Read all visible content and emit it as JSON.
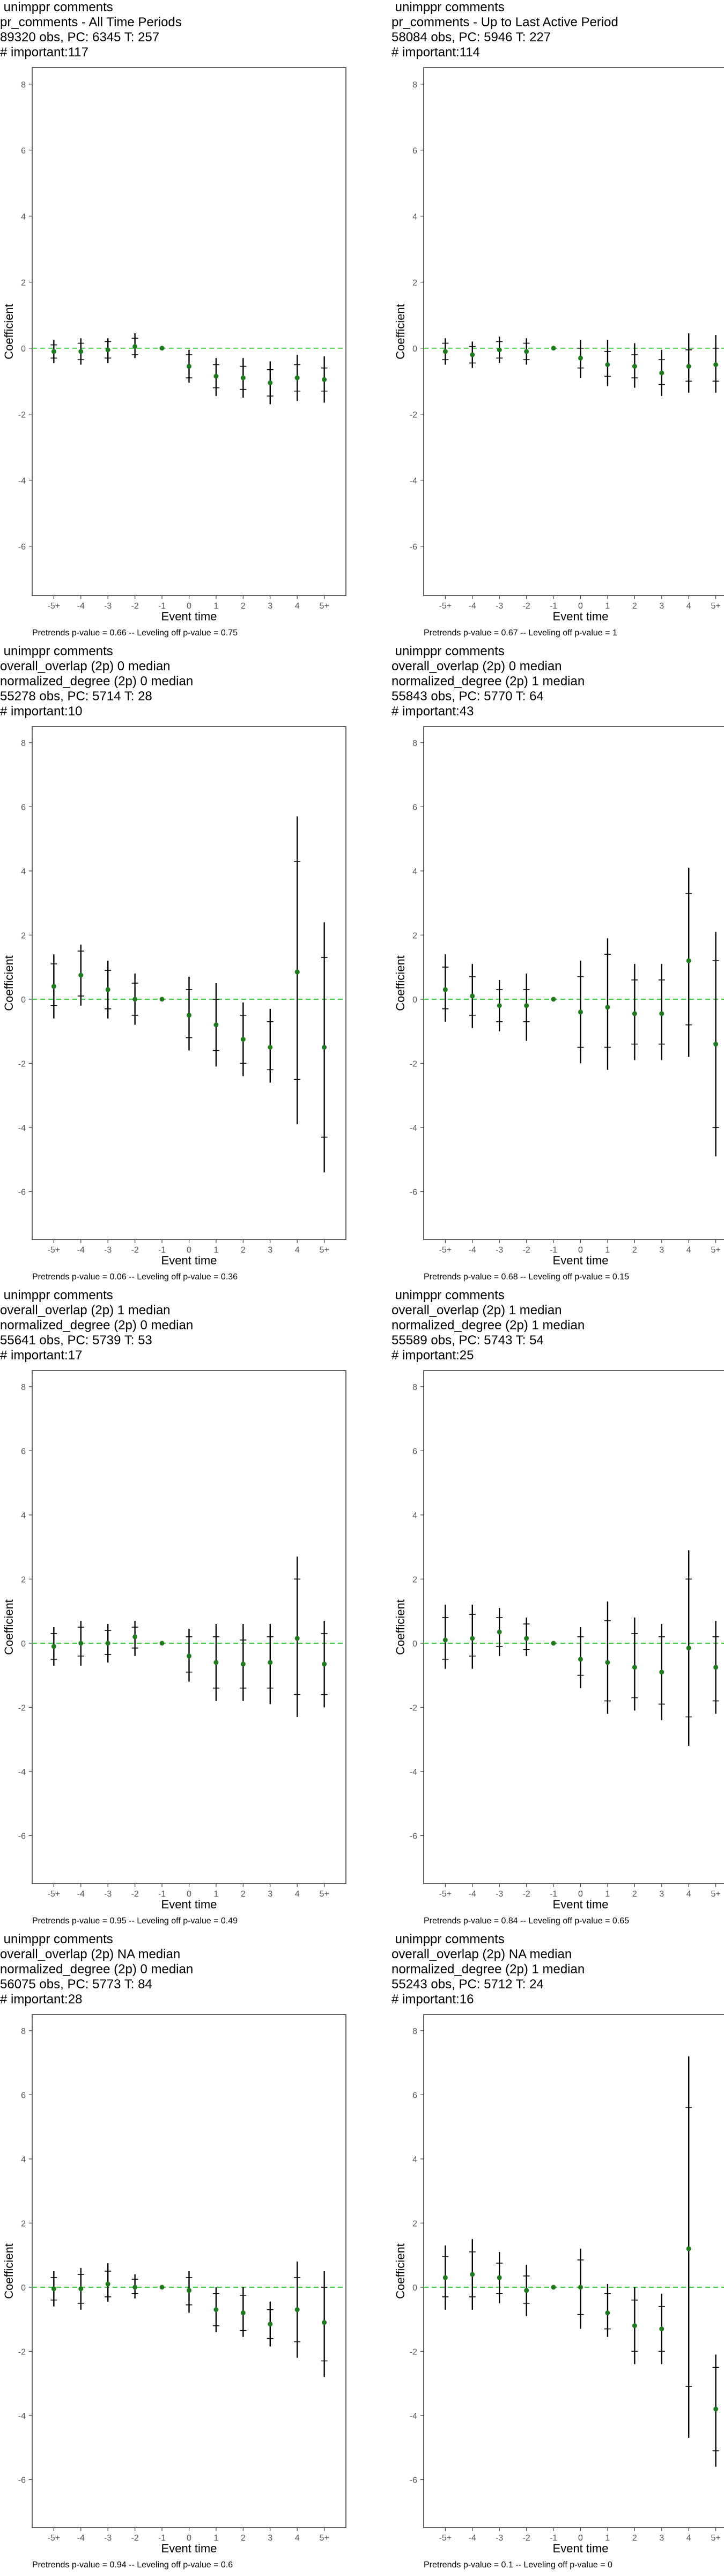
{
  "colors": {
    "point": "#1f7a1f",
    "errorbar": "#000000",
    "zero_line": "#33cc33",
    "frame": "#333333"
  },
  "chart_data": [
    {
      "type": "scatter",
      "title_lines": [
        "unimppr comments",
        "pr_comments - All Time Periods",
        "89320 obs, PC: 6345 T: 257",
        "# important:117"
      ],
      "xlabel": "Event time",
      "ylabel": "Coefficient",
      "categories": [
        "-5+",
        "-4",
        "-3",
        "-2",
        "-1",
        "0",
        "1",
        "2",
        "3",
        "4",
        "5+"
      ],
      "values": [
        -0.1,
        -0.1,
        -0.05,
        0.05,
        0,
        -0.55,
        -0.85,
        -0.9,
        -1.05,
        -0.9,
        -0.95
      ],
      "ci_inner": [
        [
          -0.3,
          0.1
        ],
        [
          -0.35,
          0.15
        ],
        [
          -0.3,
          0.2
        ],
        [
          -0.2,
          0.3
        ],
        [
          0,
          0
        ],
        [
          -0.9,
          -0.2
        ],
        [
          -1.2,
          -0.5
        ],
        [
          -1.25,
          -0.55
        ],
        [
          -1.45,
          -0.65
        ],
        [
          -1.3,
          -0.5
        ],
        [
          -1.3,
          -0.6
        ]
      ],
      "ci_outer": [
        [
          -0.45,
          0.25
        ],
        [
          -0.5,
          0.3
        ],
        [
          -0.45,
          0.3
        ],
        [
          -0.3,
          0.45
        ],
        [
          0,
          0
        ],
        [
          -1.05,
          -0.05
        ],
        [
          -1.45,
          -0.3
        ],
        [
          -1.5,
          -0.3
        ],
        [
          -1.7,
          -0.4
        ],
        [
          -1.6,
          -0.2
        ],
        [
          -1.65,
          -0.25
        ]
      ],
      "ylim": [
        -7.5,
        8.5
      ],
      "yticks": [
        -6,
        -4,
        -2,
        0,
        2,
        4,
        6,
        8
      ],
      "footnote": "Pretrends p-value = 0.66 -- Leveling off p-value = 0.75"
    },
    {
      "type": "scatter",
      "title_lines": [
        "unimppr comments",
        "pr_comments - Up to Last Active Period",
        "58084 obs, PC: 5946 T: 227",
        "# important:114"
      ],
      "xlabel": "Event time",
      "ylabel": "Coefficient",
      "categories": [
        "-5+",
        "-4",
        "-3",
        "-2",
        "-1",
        "0",
        "1",
        "2",
        "3",
        "4",
        "5+"
      ],
      "values": [
        -0.1,
        -0.2,
        -0.05,
        -0.1,
        0,
        -0.3,
        -0.5,
        -0.55,
        -0.75,
        -0.55,
        -0.5
      ],
      "ci_inner": [
        [
          -0.35,
          0.15
        ],
        [
          -0.45,
          0.05
        ],
        [
          -0.3,
          0.2
        ],
        [
          -0.35,
          0.15
        ],
        [
          0,
          0
        ],
        [
          -0.6,
          0
        ],
        [
          -0.85,
          -0.1
        ],
        [
          -0.9,
          -0.2
        ],
        [
          -1.1,
          -0.35
        ],
        [
          -1,
          -0.05
        ],
        [
          -1,
          0
        ]
      ],
      "ci_outer": [
        [
          -0.5,
          0.3
        ],
        [
          -0.6,
          0.2
        ],
        [
          -0.45,
          0.35
        ],
        [
          -0.5,
          0.3
        ],
        [
          0,
          0
        ],
        [
          -0.9,
          0.25
        ],
        [
          -1.15,
          0.25
        ],
        [
          -1.2,
          0.15
        ],
        [
          -1.45,
          -0.05
        ],
        [
          -1.35,
          0.45
        ],
        [
          -1.35,
          0.4
        ]
      ],
      "ylim": [
        -7.5,
        8.5
      ],
      "yticks": [
        -6,
        -4,
        -2,
        0,
        2,
        4,
        6,
        8
      ],
      "footnote": "Pretrends p-value = 0.67 -- Leveling off p-value = 1"
    },
    {
      "type": "scatter",
      "title_lines": [
        "unimppr comments",
        "overall_overlap (2p) 0 median",
        "normalized_degree (2p) 0 median",
        "55278 obs, PC: 5714 T: 28",
        "# important:10"
      ],
      "xlabel": "Event time",
      "ylabel": "Coefficient",
      "categories": [
        "-5+",
        "-4",
        "-3",
        "-2",
        "-1",
        "0",
        "1",
        "2",
        "3",
        "4",
        "5+"
      ],
      "values": [
        0.4,
        0.75,
        0.3,
        0,
        0,
        -0.5,
        -0.8,
        -1.25,
        -1.5,
        0.85,
        -1.5
      ],
      "ci_inner": [
        [
          -0.2,
          1.1
        ],
        [
          0.1,
          1.5
        ],
        [
          -0.3,
          0.9
        ],
        [
          -0.5,
          0.5
        ],
        [
          0,
          0
        ],
        [
          -1.2,
          0.3
        ],
        [
          -1.6,
          0
        ],
        [
          -2,
          -0.5
        ],
        [
          -2.2,
          -0.7
        ],
        [
          -2.5,
          4.3
        ],
        [
          -4.3,
          1.3
        ]
      ],
      "ci_outer": [
        [
          -0.6,
          1.4
        ],
        [
          -0.2,
          1.7
        ],
        [
          -0.6,
          1.2
        ],
        [
          -0.8,
          0.8
        ],
        [
          0,
          0
        ],
        [
          -1.6,
          0.7
        ],
        [
          -2.1,
          0.5
        ],
        [
          -2.4,
          -0.1
        ],
        [
          -2.6,
          -0.3
        ],
        [
          -3.9,
          5.7
        ],
        [
          -5.4,
          2.4
        ]
      ],
      "ylim": [
        -7.5,
        8.5
      ],
      "yticks": [
        -6,
        -4,
        -2,
        0,
        2,
        4,
        6,
        8
      ],
      "footnote": "Pretrends p-value = 0.06 -- Leveling off p-value = 0.36"
    },
    {
      "type": "scatter",
      "title_lines": [
        "unimppr comments",
        "overall_overlap (2p) 0 median",
        "normalized_degree (2p) 1 median",
        "55843 obs, PC: 5770 T: 64",
        "# important:43"
      ],
      "xlabel": "Event time",
      "ylabel": "Coefficient",
      "categories": [
        "-5+",
        "-4",
        "-3",
        "-2",
        "-1",
        "0",
        "1",
        "2",
        "3",
        "4",
        "5+"
      ],
      "values": [
        0.3,
        0.1,
        -0.2,
        -0.2,
        0,
        -0.4,
        -0.25,
        -0.45,
        -0.45,
        1.2,
        -1.4
      ],
      "ci_inner": [
        [
          -0.3,
          1
        ],
        [
          -0.5,
          0.7
        ],
        [
          -0.7,
          0.3
        ],
        [
          -0.7,
          0.3
        ],
        [
          0,
          0
        ],
        [
          -1.5,
          0.7
        ],
        [
          -1.5,
          1.4
        ],
        [
          -1.4,
          0.6
        ],
        [
          -1.4,
          0.6
        ],
        [
          -0.8,
          3.3
        ],
        [
          -4,
          1.2
        ]
      ],
      "ci_outer": [
        [
          -0.7,
          1.4
        ],
        [
          -0.9,
          1.1
        ],
        [
          -1,
          0.6
        ],
        [
          -1.3,
          0.8
        ],
        [
          0,
          0
        ],
        [
          -2,
          1.2
        ],
        [
          -2.2,
          1.9
        ],
        [
          -1.9,
          1.1
        ],
        [
          -1.9,
          1.1
        ],
        [
          -1.8,
          4.1
        ],
        [
          -4.9,
          2.1
        ]
      ],
      "ylim": [
        -7.5,
        8.5
      ],
      "yticks": [
        -6,
        -4,
        -2,
        0,
        2,
        4,
        6,
        8
      ],
      "footnote": "Pretrends p-value = 0.68 -- Leveling off p-value = 0.15"
    },
    {
      "type": "scatter",
      "title_lines": [
        "unimppr comments",
        "overall_overlap (2p) 1 median",
        "normalized_degree (2p) 0 median",
        "55641 obs, PC: 5739 T: 53",
        "# important:17"
      ],
      "xlabel": "Event time",
      "ylabel": "Coefficient",
      "categories": [
        "-5+",
        "-4",
        "-3",
        "-2",
        "-1",
        "0",
        "1",
        "2",
        "3",
        "4",
        "5+"
      ],
      "values": [
        -0.1,
        0,
        0,
        0.2,
        0,
        -0.4,
        -0.6,
        -0.65,
        -0.6,
        0.15,
        -0.65
      ],
      "ci_inner": [
        [
          -0.5,
          0.3
        ],
        [
          -0.4,
          0.5
        ],
        [
          -0.35,
          0.4
        ],
        [
          -0.15,
          0.5
        ],
        [
          0,
          0
        ],
        [
          -0.9,
          0.2
        ],
        [
          -1.4,
          0.2
        ],
        [
          -1.4,
          0.1
        ],
        [
          -1.4,
          0.2
        ],
        [
          -1.6,
          2
        ],
        [
          -1.6,
          0.3
        ]
      ],
      "ci_outer": [
        [
          -0.7,
          0.5
        ],
        [
          -0.7,
          0.7
        ],
        [
          -0.6,
          0.6
        ],
        [
          -0.4,
          0.7
        ],
        [
          0,
          0
        ],
        [
          -1.2,
          0.45
        ],
        [
          -1.8,
          0.6
        ],
        [
          -1.8,
          0.6
        ],
        [
          -1.9,
          0.6
        ],
        [
          -2.3,
          2.7
        ],
        [
          -2,
          0.7
        ]
      ],
      "ylim": [
        -7.5,
        8.5
      ],
      "yticks": [
        -6,
        -4,
        -2,
        0,
        2,
        4,
        6,
        8
      ],
      "footnote": "Pretrends p-value = 0.95 -- Leveling off p-value = 0.49"
    },
    {
      "type": "scatter",
      "title_lines": [
        "unimppr comments",
        "overall_overlap (2p) 1 median",
        "normalized_degree (2p) 1 median",
        "55589 obs, PC: 5743 T: 54",
        "# important:25"
      ],
      "xlabel": "Event time",
      "ylabel": "Coefficient",
      "categories": [
        "-5+",
        "-4",
        "-3",
        "-2",
        "-1",
        "0",
        "1",
        "2",
        "3",
        "4",
        "5+"
      ],
      "values": [
        0.1,
        0.15,
        0.35,
        0.15,
        0,
        -0.5,
        -0.6,
        -0.75,
        -0.9,
        -0.15,
        -0.75
      ],
      "ci_inner": [
        [
          -0.5,
          0.8
        ],
        [
          -0.4,
          0.9
        ],
        [
          -0.1,
          0.8
        ],
        [
          -0.2,
          0.6
        ],
        [
          0,
          0
        ],
        [
          -1,
          0.2
        ],
        [
          -1.8,
          0.7
        ],
        [
          -1.7,
          0.3
        ],
        [
          -1.9,
          0.2
        ],
        [
          -2.3,
          2
        ],
        [
          -1.8,
          0.2
        ]
      ],
      "ci_outer": [
        [
          -0.8,
          1.2
        ],
        [
          -0.8,
          1.2
        ],
        [
          -0.4,
          1.1
        ],
        [
          -0.4,
          0.8
        ],
        [
          0,
          0
        ],
        [
          -1.4,
          0.5
        ],
        [
          -2.2,
          1.3
        ],
        [
          -2.1,
          0.8
        ],
        [
          -2.4,
          0.6
        ],
        [
          -3.2,
          2.9
        ],
        [
          -2.2,
          0.7
        ]
      ],
      "ylim": [
        -7.5,
        8.5
      ],
      "yticks": [
        -6,
        -4,
        -2,
        0,
        2,
        4,
        6,
        8
      ],
      "footnote": "Pretrends p-value = 0.84 -- Leveling off p-value = 0.65"
    },
    {
      "type": "scatter",
      "title_lines": [
        "unimppr comments",
        "overall_overlap (2p) NA median",
        "normalized_degree (2p) 0 median",
        "56075 obs, PC: 5773 T: 84",
        "# important:28"
      ],
      "xlabel": "Event time",
      "ylabel": "Coefficient",
      "categories": [
        "-5+",
        "-4",
        "-3",
        "-2",
        "-1",
        "0",
        "1",
        "2",
        "3",
        "4",
        "5+"
      ],
      "values": [
        -0.05,
        -0.05,
        0.1,
        0,
        0,
        -0.1,
        -0.7,
        -0.8,
        -1.15,
        -0.7,
        -1.1
      ],
      "ci_inner": [
        [
          -0.4,
          0.3
        ],
        [
          -0.5,
          0.4
        ],
        [
          -0.3,
          0.5
        ],
        [
          -0.2,
          0.25
        ],
        [
          0,
          0
        ],
        [
          -0.55,
          0.3
        ],
        [
          -1.2,
          -0.2
        ],
        [
          -1.35,
          -0.25
        ],
        [
          -1.6,
          -0.7
        ],
        [
          -1.7,
          0.3
        ],
        [
          -2.3,
          0
        ]
      ],
      "ci_outer": [
        [
          -0.6,
          0.5
        ],
        [
          -0.7,
          0.6
        ],
        [
          -0.45,
          0.75
        ],
        [
          -0.35,
          0.4
        ],
        [
          0,
          0
        ],
        [
          -0.8,
          0.5
        ],
        [
          -1.4,
          0
        ],
        [
          -1.55,
          0
        ],
        [
          -1.85,
          -0.45
        ],
        [
          -2.2,
          0.8
        ],
        [
          -2.8,
          0.5
        ]
      ],
      "ylim": [
        -7.5,
        8.5
      ],
      "yticks": [
        -6,
        -4,
        -2,
        0,
        2,
        4,
        6,
        8
      ],
      "footnote": "Pretrends p-value = 0.94 -- Leveling off p-value = 0.6"
    },
    {
      "type": "scatter",
      "title_lines": [
        "unimppr comments",
        "overall_overlap (2p) NA median",
        "normalized_degree (2p) 1 median",
        "55243 obs, PC: 5712 T: 24",
        "# important:16"
      ],
      "xlabel": "Event time",
      "ylabel": "Coefficient",
      "categories": [
        "-5+",
        "-4",
        "-3",
        "-2",
        "-1",
        "0",
        "1",
        "2",
        "3",
        "4",
        "5+"
      ],
      "values": [
        0.3,
        0.4,
        0.3,
        -0.1,
        0,
        0,
        -0.8,
        -1.2,
        -1.3,
        1.2,
        -3.8
      ],
      "ci_inner": [
        [
          -0.3,
          0.95
        ],
        [
          -0.3,
          1.1
        ],
        [
          -0.2,
          0.75
        ],
        [
          -0.5,
          0.35
        ],
        [
          0,
          0
        ],
        [
          -0.85,
          0.85
        ],
        [
          -1.3,
          -0.2
        ],
        [
          -2,
          -0.4
        ],
        [
          -2,
          -0.6
        ],
        [
          -3.1,
          5.6
        ],
        [
          -5.1,
          -2.5
        ]
      ],
      "ci_outer": [
        [
          -0.7,
          1.3
        ],
        [
          -0.7,
          1.5
        ],
        [
          -0.5,
          1.1
        ],
        [
          -0.9,
          0.7
        ],
        [
          0,
          0
        ],
        [
          -1.3,
          1.2
        ],
        [
          -1.55,
          0.1
        ],
        [
          -2.4,
          0
        ],
        [
          -2.4,
          -0.2
        ],
        [
          -4.7,
          7.2
        ],
        [
          -5.6,
          -2.1
        ]
      ],
      "ylim": [
        -7.5,
        8.5
      ],
      "yticks": [
        -6,
        -4,
        -2,
        0,
        2,
        4,
        6,
        8
      ],
      "footnote": "Pretrends p-value = 0.1 -- Leveling off p-value = 0"
    }
  ]
}
